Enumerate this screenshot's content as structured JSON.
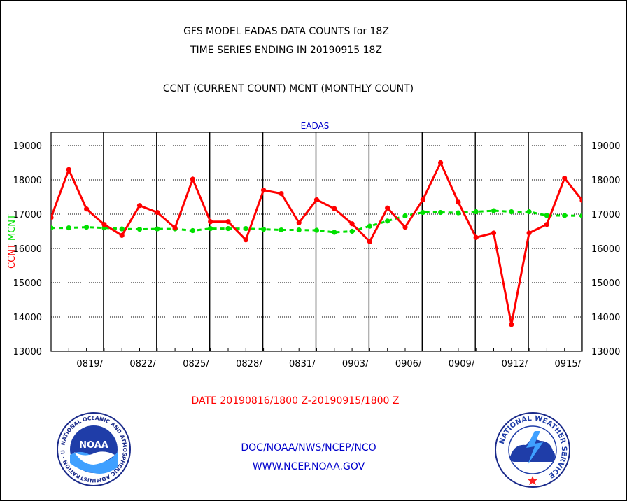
{
  "header": {
    "line1": "GFS MODEL EADAS DATA COUNTS for 18Z",
    "line2": "TIME SERIES ENDING IN 20190915 18Z",
    "line3": "CCNT (CURRENT COUNT) MCNT (MONTHLY COUNT)"
  },
  "footer": {
    "date_range": "DATE 20190816/1800 Z-20190915/1800 Z",
    "org": "DOC/NOAA/NWS/NCEP/NCO",
    "url": "WWW.NCEP.NOAA.GOV"
  },
  "logos": {
    "noaa_label": "NOAA",
    "noaa_ring": "NATIONAL OCEANIC AND ATMOSPHERIC ADMINISTRATION · U.S. DEPARTMENT OF COMMERCE ·",
    "nws_ring": "NATIONAL WEATHER SERVICE"
  },
  "colors": {
    "ccnt": "#ff0000",
    "mcnt": "#00e000",
    "title_blue": "#0000cc",
    "date_red": "#ff0000",
    "footer_blue": "#0000cc"
  },
  "chart_data": {
    "type": "line",
    "title": "EADAS",
    "ylabel_parts": [
      "CCNT",
      "MCNT"
    ],
    "ylim": [
      13000,
      19500
    ],
    "yticks": [
      13000,
      14000,
      15000,
      16000,
      17000,
      18000,
      19000
    ],
    "grid": true,
    "x_days": [
      0,
      1,
      2,
      3,
      4,
      5,
      6,
      7,
      8,
      9,
      10,
      11,
      12,
      13,
      14,
      15,
      16,
      17,
      18,
      19,
      20,
      21,
      22,
      23,
      24,
      25,
      26,
      27,
      28,
      29,
      30
    ],
    "xtick_labels": [
      "0819/",
      "0822/",
      "0825/",
      "0828/",
      "0831/",
      "0903/",
      "0906/",
      "0909/",
      "0912/",
      "0915/"
    ],
    "xtick_days": [
      3,
      6,
      9,
      12,
      15,
      18,
      21,
      24,
      27,
      30
    ],
    "series": [
      {
        "name": "CCNT",
        "values": [
          16900,
          18300,
          17150,
          16700,
          16380,
          17250,
          17050,
          16600,
          18020,
          16780,
          16780,
          16250,
          17700,
          17600,
          16750,
          17420,
          17160,
          16720,
          16200,
          17180,
          16620,
          17420,
          18500,
          17350,
          16320,
          16450,
          13780,
          16450,
          16700,
          18050,
          17400
        ]
      },
      {
        "name": "MCNT",
        "values": [
          16600,
          16600,
          16620,
          16600,
          16570,
          16560,
          16570,
          16570,
          16520,
          16580,
          16580,
          16580,
          16560,
          16540,
          16540,
          16530,
          16470,
          16500,
          16650,
          16800,
          16950,
          17050,
          17050,
          17040,
          17070,
          17100,
          17070,
          17070,
          16960,
          16960,
          16950
        ]
      }
    ]
  }
}
